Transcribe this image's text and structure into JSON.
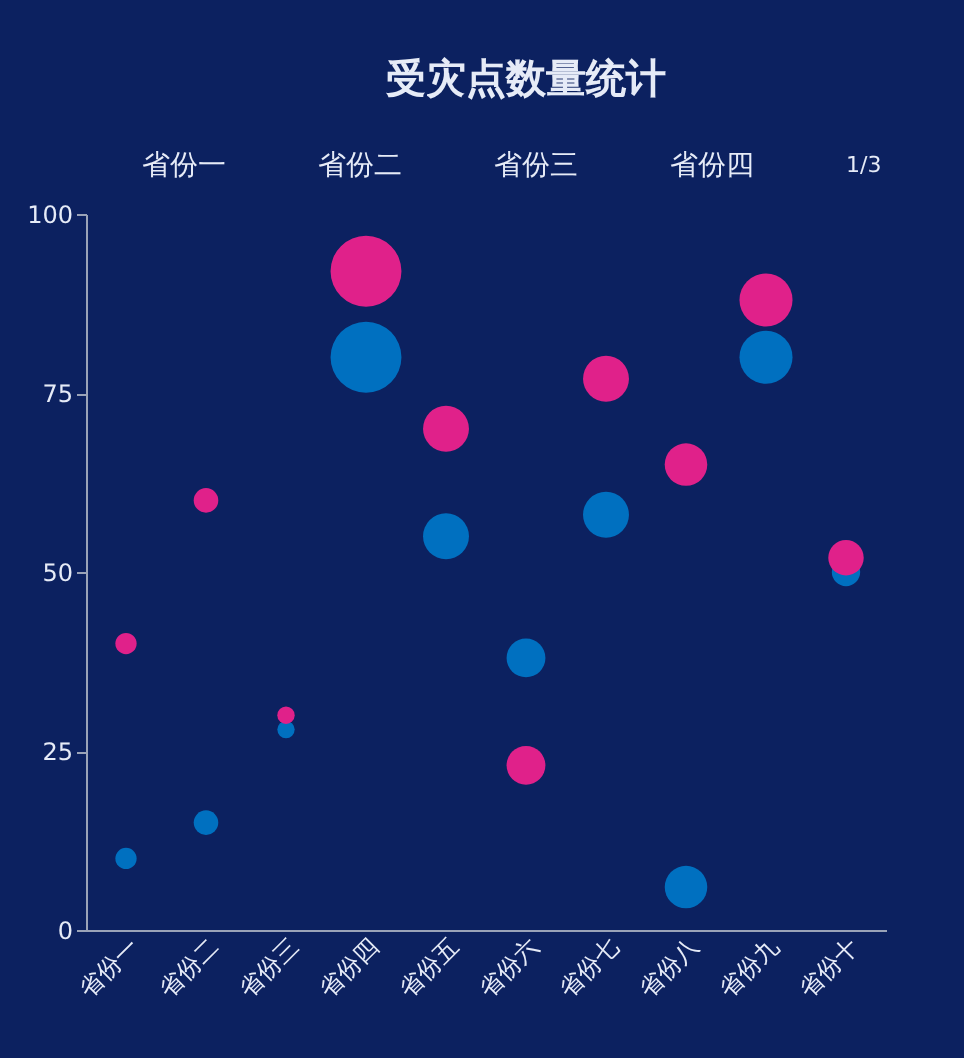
{
  "chart_data": {
    "type": "bubble",
    "title": "受灾点数量统计",
    "categories": [
      "省份一",
      "省份二",
      "省份三",
      "省份四",
      "省份五",
      "省份六",
      "省份七",
      "省份八",
      "省份九",
      "省份十"
    ],
    "series": [
      {
        "color": "#0070c0",
        "values": [
          10,
          15,
          28,
          80,
          55,
          38,
          58,
          6,
          80,
          50
        ],
        "sizes": [
          0.09,
          0.12,
          0.06,
          1,
          0.42,
          0.3,
          0.42,
          0.36,
          0.56,
          0.16
        ]
      },
      {
        "color": "#e0218a",
        "values": [
          40,
          60,
          30,
          92,
          70,
          23,
          77,
          65,
          88,
          52
        ],
        "sizes": [
          0.09,
          0.12,
          0.06,
          1,
          0.42,
          0.3,
          0.42,
          0.36,
          0.56,
          0.25
        ]
      }
    ],
    "annotations": [
      "省份一",
      "省份二",
      "省份三",
      "省份四",
      "1/3"
    ],
    "ylim": [
      0,
      100
    ],
    "yticks": [
      0,
      25,
      50,
      75,
      100
    ],
    "grid": false
  }
}
